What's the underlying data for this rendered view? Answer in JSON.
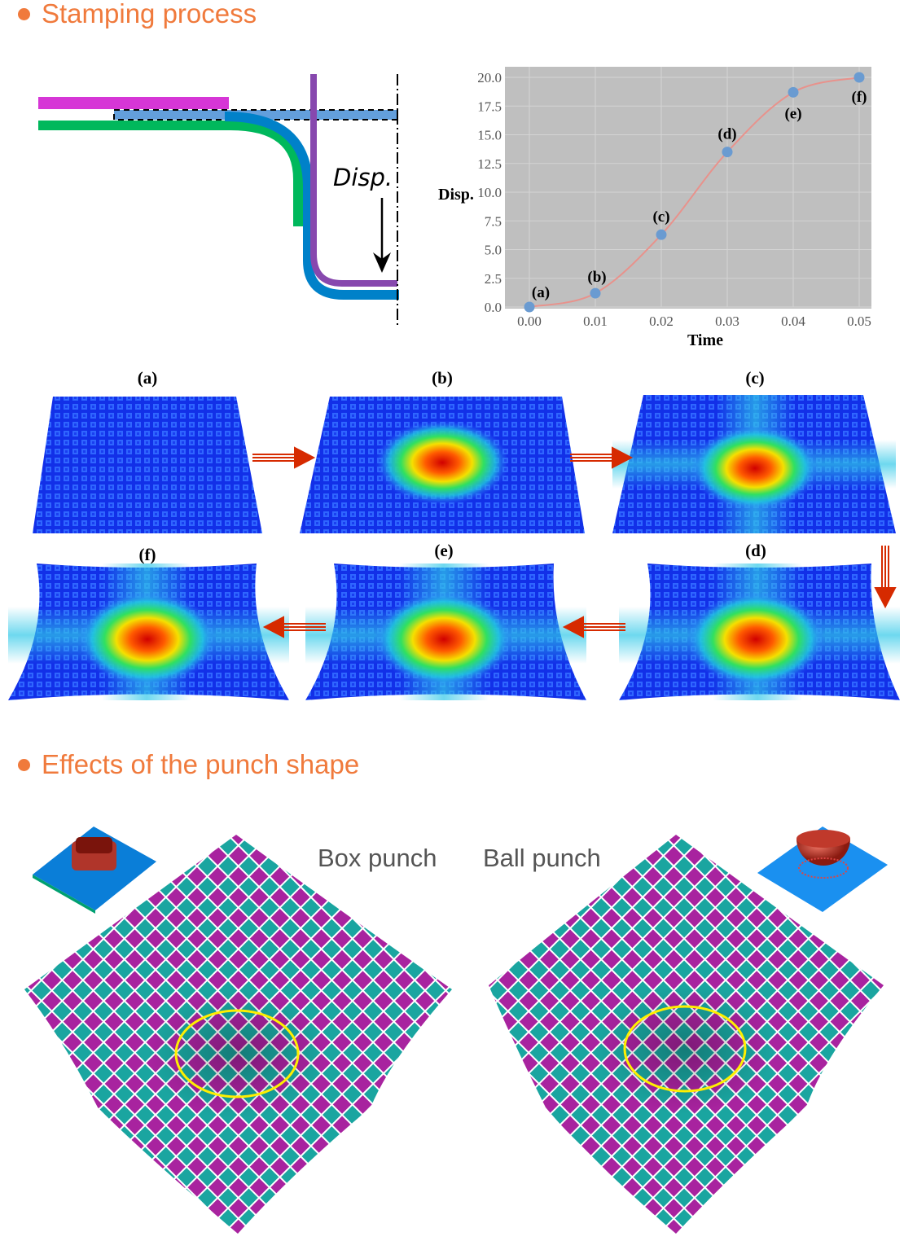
{
  "sections": {
    "stamping": {
      "title": "Stamping process"
    },
    "punch_shape": {
      "title": "Effects of the punch shape",
      "box_label": "Box punch",
      "ball_label": "Ball punch"
    }
  },
  "diagram": {
    "disp_label": "Disp."
  },
  "colors": {
    "accent": "#f07a3c",
    "plot_bg": "#bfbfbf",
    "point": "#6a9bd1",
    "curve": "#e8928c",
    "blank_holder": "#d636d6",
    "die": "#00b85c",
    "sheet": "#0081c9",
    "punch": "#8748ae",
    "mesh_teal": "#1aa5a0",
    "mesh_magenta": "#a8239f",
    "highlight": "#ffef00"
  },
  "chart_data": {
    "type": "scatter",
    "title": "",
    "xlabel": "Time",
    "ylabel": "Disp.",
    "xlim": [
      0,
      0.05
    ],
    "ylim": [
      0,
      20
    ],
    "xticks": [
      "0.00",
      "0.01",
      "0.02",
      "0.03",
      "0.04",
      "0.05"
    ],
    "yticks": [
      "0.0",
      "2.5",
      "5.0",
      "7.5",
      "10.0",
      "12.5",
      "15.0",
      "17.5",
      "20.0"
    ],
    "grid": true,
    "points": [
      {
        "label": "(a)",
        "x": 0.0,
        "y": 0.0
      },
      {
        "label": "(b)",
        "x": 0.01,
        "y": 1.2
      },
      {
        "label": "(c)",
        "x": 0.02,
        "y": 6.3
      },
      {
        "label": "(d)",
        "x": 0.03,
        "y": 13.5
      },
      {
        "label": "(e)",
        "x": 0.04,
        "y": 18.7
      },
      {
        "label": "(f)",
        "x": 0.05,
        "y": 20.0
      }
    ]
  },
  "stages": {
    "a": "(a)",
    "b": "(b)",
    "c": "(c)",
    "d": "(d)",
    "e": "(e)",
    "f": "(f)"
  }
}
